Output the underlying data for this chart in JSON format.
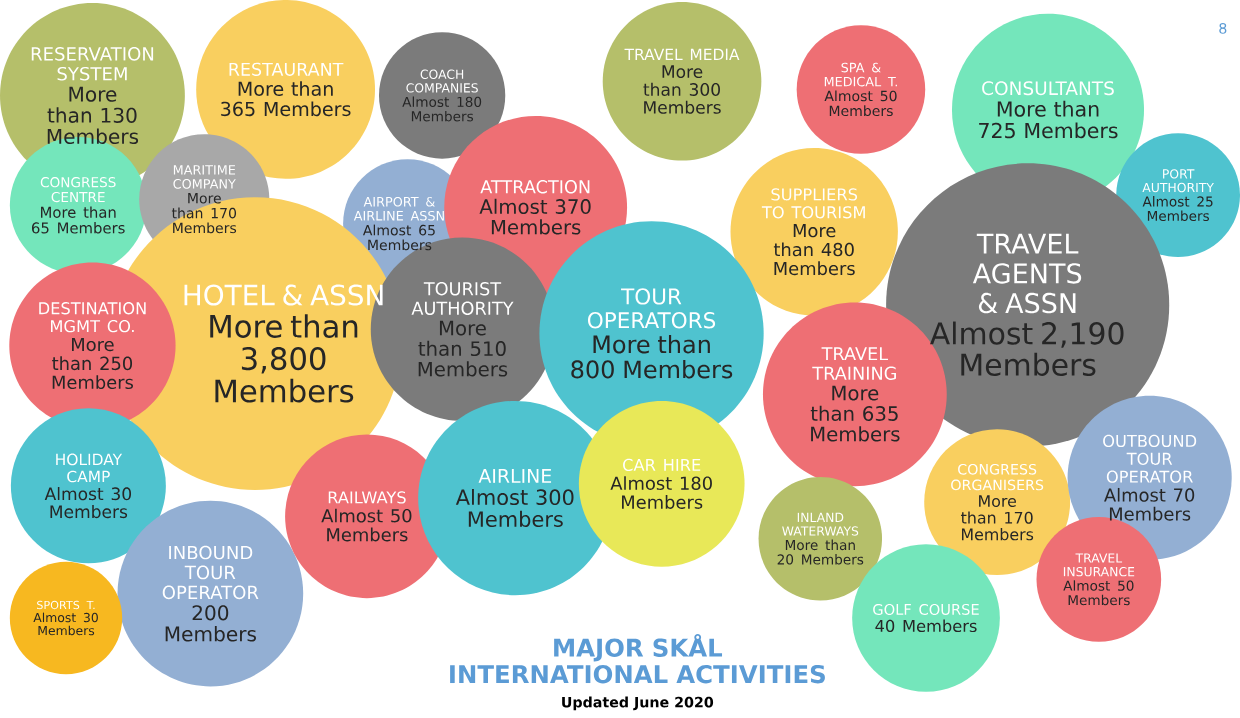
{
  "chart_data": {
    "type": "other",
    "title": "MAJOR SKÅL INTERNATIONAL ACTIVITIES",
    "subtitle": "Updated June 2020",
    "annotations": [
      "8"
    ],
    "categories": [
      "RESERVATION SYSTEM",
      "RESTAURANT",
      "COACH COMPANIES",
      "TRAVEL MEDIA",
      "SPA & MEDICAL T.",
      "CONSULTANTS",
      "PORT AUTHORITY",
      "CONGRESS CENTRE",
      "MARITIME COMPANY",
      "AIRPORT & AIRLINE ASSN",
      "ATTRACTION",
      "SUPPLIERS TO TOURISM",
      "TRAVEL AGENTS & ASSN",
      "HOTEL & ASSN",
      "DESTINATION MGMT CO.",
      "TOURIST AUTHORITY",
      "TOUR OPERATORS",
      "TRAVEL TRAINING",
      "HOLIDAY CAMP",
      "INBOUND TOUR OPERATOR",
      "RAILWAYS",
      "AIRLINE",
      "CAR HIRE",
      "INLAND WATERWAYS",
      "CONGRESS ORGANISERS",
      "OUTBOUND TOUR OPERATOR",
      "SPORTS T.",
      "GOLF COURSE",
      "TRAVEL INSURANCE"
    ],
    "values": [
      130,
      365,
      180,
      300,
      50,
      725,
      25,
      65,
      170,
      65,
      370,
      480,
      2190,
      3800,
      250,
      510,
      800,
      635,
      30,
      200,
      50,
      300,
      180,
      20,
      170,
      70,
      30,
      40,
      50
    ],
    "value_labels": [
      "More than 130 Members",
      "More than 365 Members",
      "Almost 180 Members",
      "More than 300 Members",
      "Almost 50 Members",
      "More than 725 Members",
      "Almost 25 Members",
      "More than 65 Members",
      "More than 170 Members",
      "Almost 65 Members",
      "Almost 370 Members",
      "More than 480 Members",
      "Almost 2,190 Members",
      "More than 3,800 Members",
      "More than 250 Members",
      "More than 510 Members",
      "More than 800 Members",
      "More than 635 Members",
      "Almost 30 Members",
      "200 Members",
      "Almost 50 Members",
      "Almost 300 Members",
      "Almost 180 Members",
      "More than 20 Members",
      "More than 170 Members",
      "Almost 70 Members",
      "Almost 30 Members",
      "40 Members",
      "Almost 50 Members"
    ],
    "colors": [
      "#b5bf6a",
      "#f9cf5f",
      "#7b7b7b",
      "#b5bf6a",
      "#ee6f74",
      "#74e6bb",
      "#4fc3cf",
      "#74e6bb",
      "#a8a8a8",
      "#93afd3",
      "#ee6f74",
      "#f9cf5f",
      "#7b7b7b",
      "#f9cf5f",
      "#ee6f74",
      "#7b7b7b",
      "#4fc3cf",
      "#ee6f74",
      "#4fc3cf",
      "#93afd3",
      "#ee6f74",
      "#4fc3cf",
      "#e8e858",
      "#b5bf6a",
      "#f9cf5f",
      "#93afd3",
      "#f7b820",
      "#74e6bb",
      "#ee6f74"
    ]
  }
}
